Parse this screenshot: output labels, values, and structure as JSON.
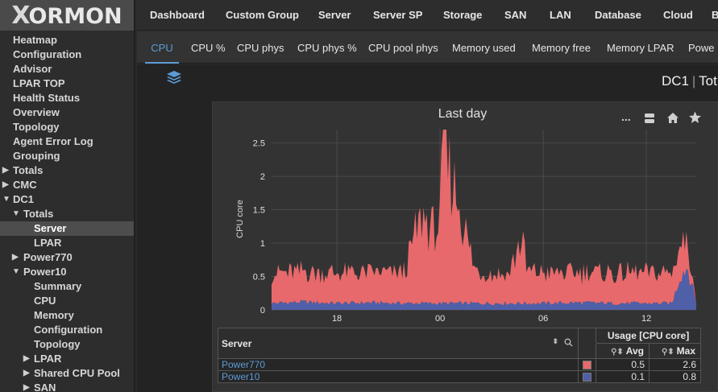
{
  "app": {
    "logo_text": "ORMON",
    "logo_x": "X"
  },
  "sidebar": {
    "items": [
      {
        "label": "Heatmap"
      },
      {
        "label": "Configuration"
      },
      {
        "label": "Advisor"
      },
      {
        "label": "LPAR TOP"
      },
      {
        "label": "Health Status"
      },
      {
        "label": "Overview"
      },
      {
        "label": "Topology"
      },
      {
        "label": "Agent Error Log"
      },
      {
        "label": "Grouping"
      },
      {
        "label": "Totals"
      },
      {
        "label": "CMC"
      },
      {
        "label": "DC1"
      },
      {
        "label": "Totals"
      },
      {
        "label": "Server"
      },
      {
        "label": "LPAR"
      },
      {
        "label": "Power770"
      },
      {
        "label": "Power10"
      },
      {
        "label": "Summary"
      },
      {
        "label": "CPU"
      },
      {
        "label": "Memory"
      },
      {
        "label": "Configuration"
      },
      {
        "label": "Topology"
      },
      {
        "label": "LPAR"
      },
      {
        "label": "Shared CPU Pool"
      },
      {
        "label": "SAN"
      }
    ]
  },
  "topnav": {
    "items": [
      {
        "label": "Dashboard"
      },
      {
        "label": "Custom Group"
      },
      {
        "label": "Server"
      },
      {
        "label": "Server SP"
      },
      {
        "label": "Storage"
      },
      {
        "label": "SAN"
      },
      {
        "label": "LAN"
      },
      {
        "label": "Database"
      },
      {
        "label": "Cloud"
      },
      {
        "label": "B"
      }
    ]
  },
  "subtabs": {
    "items": [
      {
        "label": "CPU"
      },
      {
        "label": "CPU %"
      },
      {
        "label": "CPU phys"
      },
      {
        "label": "CPU phys %"
      },
      {
        "label": "CPU pool phys"
      },
      {
        "label": "Memory used"
      },
      {
        "label": "Memory free"
      },
      {
        "label": "Memory LPAR"
      },
      {
        "label": "Powe"
      }
    ],
    "active": "CPU"
  },
  "breadcrumb": {
    "part1": "DC1",
    "sep": "|",
    "part2": "Tot"
  },
  "panel": {
    "more_label": "...",
    "table": {
      "col_server": "Server",
      "col_usage": "Usage [CPU core]",
      "col_avg": "Avg",
      "col_max": "Max",
      "rows": [
        {
          "name": "Power770",
          "avg": "0.5",
          "max": "2.6",
          "color": "#e8696b"
        },
        {
          "name": "Power10",
          "avg": "0.1",
          "max": "0.8",
          "color": "#4f5fa8"
        }
      ]
    }
  },
  "chart_data": {
    "type": "area",
    "title": "Last day",
    "ylabel": "CPU core",
    "xlabel": "",
    "ylim": [
      0,
      2.7
    ],
    "yticks": [
      "0",
      "0.5",
      "1",
      "1.5",
      "2",
      "2.5"
    ],
    "ytick_values": [
      0,
      0.5,
      1,
      1.5,
      2,
      2.5
    ],
    "xticks": [
      "18",
      "00",
      "06",
      "12"
    ],
    "xtick_hours": [
      18,
      24,
      30,
      36
    ],
    "x_range_hours": [
      14.2,
      38.9
    ],
    "stacked": true,
    "series": [
      {
        "name": "Power10",
        "color": "#4f5fa8",
        "hours": [
          14.2,
          16,
          18,
          20,
          22,
          24,
          26,
          28,
          30,
          32,
          34,
          36,
          37.5,
          38,
          38.4,
          38.9
        ],
        "values": [
          0.1,
          0.12,
          0.1,
          0.11,
          0.1,
          0.1,
          0.1,
          0.1,
          0.1,
          0.11,
          0.1,
          0.1,
          0.1,
          0.55,
          0.65,
          0.1
        ]
      },
      {
        "name": "Power770",
        "color": "#e8696b",
        "hours": [
          14.2,
          16,
          18,
          20,
          21.5,
          22,
          22.5,
          23,
          23.5,
          24,
          24.2,
          24.3,
          24.5,
          25,
          25.5,
          26,
          27,
          28,
          28.5,
          28.8,
          29,
          30,
          32,
          34,
          36,
          37.5,
          38,
          38.4,
          38.6,
          38.9
        ],
        "values": [
          0.45,
          0.45,
          0.45,
          0.45,
          0.45,
          0.5,
          1.0,
          1.3,
          1.1,
          1.2,
          2.5,
          2.55,
          2.0,
          1.6,
          1.05,
          0.5,
          0.45,
          0.45,
          0.8,
          1.0,
          0.5,
          0.45,
          0.45,
          0.45,
          0.45,
          0.45,
          0.55,
          0.4,
          0.2,
          0.0
        ]
      }
    ]
  }
}
